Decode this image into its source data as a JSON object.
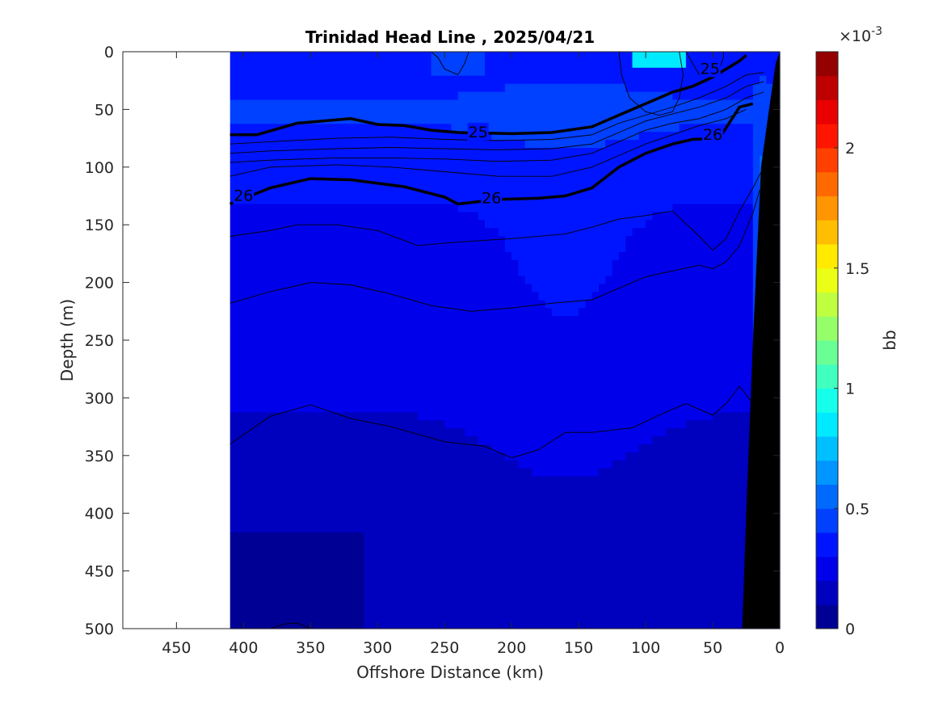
{
  "chart_data": {
    "type": "heatmap",
    "title": "Trinidad Head Line , 2025/04/21",
    "xlabel": "Offshore Distance (km)",
    "ylabel": "Depth (m)",
    "xlim": [
      490,
      0
    ],
    "ylim": [
      0,
      500
    ],
    "x_ticks": [
      450,
      400,
      350,
      300,
      250,
      200,
      150,
      100,
      50,
      0
    ],
    "y_ticks": [
      0,
      50,
      100,
      150,
      200,
      250,
      300,
      350,
      400,
      450,
      500
    ],
    "data_extent_km": [
      410,
      0
    ],
    "colorbar": {
      "label": "bb",
      "exponent_label": "×10",
      "exponent_power": "-3",
      "range": [
        0,
        0.0024
      ],
      "ticks": [
        "0",
        "0.5",
        "1",
        "1.5",
        "2"
      ],
      "tick_values": [
        0,
        0.5,
        1.0,
        1.5,
        2.0
      ],
      "levels": 24,
      "colormap": "jet"
    },
    "contour_labels": [
      {
        "text": "25",
        "x": 225,
        "y": 70
      },
      {
        "text": "25",
        "x": 52,
        "y": 15
      },
      {
        "text": "26",
        "x": 400,
        "y": 125
      },
      {
        "text": "26",
        "x": 215,
        "y": 127
      },
      {
        "text": "26",
        "x": 50,
        "y": 72
      }
    ],
    "density_contours": {
      "bold_25": [
        [
          410,
          72
        ],
        [
          390,
          72
        ],
        [
          360,
          62
        ],
        [
          320,
          58
        ],
        [
          300,
          63
        ],
        [
          280,
          64
        ],
        [
          260,
          68
        ],
        [
          240,
          70
        ],
        [
          200,
          71
        ],
        [
          170,
          70
        ],
        [
          140,
          65
        ],
        [
          120,
          55
        ],
        [
          100,
          45
        ],
        [
          80,
          35
        ],
        [
          65,
          30
        ],
        [
          50,
          22
        ],
        [
          30,
          8
        ],
        [
          25,
          3
        ]
      ],
      "bold_26": [
        [
          410,
          132
        ],
        [
          380,
          118
        ],
        [
          350,
          110
        ],
        [
          320,
          111
        ],
        [
          280,
          117
        ],
        [
          250,
          126
        ],
        [
          240,
          132
        ],
        [
          210,
          128
        ],
        [
          180,
          127
        ],
        [
          160,
          125
        ],
        [
          140,
          118
        ],
        [
          120,
          100
        ],
        [
          100,
          88
        ],
        [
          80,
          80
        ],
        [
          65,
          76
        ],
        [
          45,
          75
        ],
        [
          30,
          48
        ],
        [
          20,
          45
        ]
      ],
      "thin": [
        [
          [
            410,
            80
          ],
          [
            380,
            78
          ],
          [
            330,
            75
          ],
          [
            290,
            74
          ],
          [
            250,
            76
          ],
          [
            210,
            77
          ],
          [
            170,
            76
          ],
          [
            140,
            72
          ],
          [
            120,
            62
          ],
          [
            100,
            55
          ],
          [
            80,
            48
          ],
          [
            60,
            40
          ],
          [
            40,
            30
          ],
          [
            25,
            20
          ],
          [
            12,
            18
          ]
        ],
        [
          [
            410,
            88
          ],
          [
            380,
            86
          ],
          [
            330,
            84
          ],
          [
            290,
            83
          ],
          [
            250,
            84
          ],
          [
            210,
            85
          ],
          [
            170,
            84
          ],
          [
            140,
            80
          ],
          [
            120,
            70
          ],
          [
            100,
            60
          ],
          [
            80,
            54
          ],
          [
            60,
            48
          ],
          [
            40,
            40
          ],
          [
            25,
            30
          ],
          [
            12,
            26
          ]
        ],
        [
          [
            410,
            96
          ],
          [
            380,
            94
          ],
          [
            330,
            92
          ],
          [
            290,
            92
          ],
          [
            250,
            93
          ],
          [
            210,
            95
          ],
          [
            170,
            94
          ],
          [
            140,
            88
          ],
          [
            120,
            78
          ],
          [
            100,
            68
          ],
          [
            80,
            62
          ],
          [
            60,
            58
          ],
          [
            40,
            50
          ],
          [
            25,
            40
          ],
          [
            12,
            35
          ]
        ],
        [
          [
            410,
            108
          ],
          [
            380,
            100
          ],
          [
            330,
            98
          ],
          [
            290,
            100
          ],
          [
            250,
            104
          ],
          [
            210,
            108
          ],
          [
            170,
            108
          ],
          [
            140,
            100
          ],
          [
            120,
            90
          ],
          [
            100,
            80
          ],
          [
            80,
            72
          ],
          [
            60,
            64
          ],
          [
            40,
            58
          ],
          [
            25,
            50
          ]
        ],
        [
          [
            410,
            160
          ],
          [
            380,
            155
          ],
          [
            360,
            150
          ],
          [
            330,
            150
          ],
          [
            300,
            155
          ],
          [
            270,
            168
          ],
          [
            240,
            165
          ],
          [
            200,
            162
          ],
          [
            160,
            158
          ],
          [
            140,
            152
          ],
          [
            120,
            145
          ],
          [
            100,
            142
          ],
          [
            80,
            138
          ],
          [
            60,
            160
          ],
          [
            50,
            172
          ],
          [
            40,
            162
          ],
          [
            30,
            138
          ],
          [
            20,
            118
          ],
          [
            12,
            100
          ]
        ],
        [
          [
            410,
            218
          ],
          [
            380,
            208
          ],
          [
            350,
            200
          ],
          [
            320,
            202
          ],
          [
            290,
            210
          ],
          [
            260,
            220
          ],
          [
            230,
            225
          ],
          [
            200,
            222
          ],
          [
            170,
            218
          ],
          [
            140,
            215
          ],
          [
            120,
            205
          ],
          [
            100,
            195
          ],
          [
            80,
            190
          ],
          [
            60,
            185
          ],
          [
            50,
            188
          ],
          [
            40,
            182
          ],
          [
            30,
            168
          ],
          [
            20,
            140
          ],
          [
            15,
            120
          ]
        ],
        [
          [
            410,
            340
          ],
          [
            380,
            316
          ],
          [
            350,
            306
          ],
          [
            320,
            318
          ],
          [
            290,
            325
          ],
          [
            250,
            338
          ],
          [
            220,
            342
          ],
          [
            200,
            352
          ],
          [
            180,
            345
          ],
          [
            160,
            330
          ],
          [
            140,
            330
          ],
          [
            110,
            326
          ],
          [
            90,
            315
          ],
          [
            70,
            305
          ],
          [
            50,
            315
          ],
          [
            40,
            305
          ],
          [
            30,
            290
          ],
          [
            20,
            305
          ],
          [
            15,
            320
          ]
        ],
        [
          [
            380,
            500
          ],
          [
            370,
            496
          ],
          [
            360,
            495
          ],
          [
            350,
            500
          ]
        ]
      ],
      "surface_loops": [
        [
          [
            260,
            0
          ],
          [
            255,
            5
          ],
          [
            250,
            15
          ],
          [
            240,
            20
          ],
          [
            235,
            10
          ],
          [
            232,
            0
          ]
        ],
        [
          [
            120,
            0
          ],
          [
            118,
            20
          ],
          [
            112,
            40
          ],
          [
            100,
            52
          ],
          [
            90,
            55
          ],
          [
            80,
            52
          ],
          [
            75,
            40
          ],
          [
            72,
            20
          ],
          [
            75,
            0
          ]
        ],
        [
          [
            70,
            0
          ],
          [
            65,
            10
          ],
          [
            60,
            20
          ],
          [
            50,
            22
          ],
          [
            45,
            15
          ],
          [
            42,
            5
          ],
          [
            42,
            0
          ]
        ]
      ]
    },
    "bathymetry": {
      "color": "#000000",
      "surface": [
        [
          0,
          0
        ],
        [
          0,
          500
        ],
        [
          28,
          500
        ],
        [
          25,
          400
        ],
        [
          20,
          250
        ],
        [
          14,
          100
        ],
        [
          8,
          50
        ],
        [
          3,
          10
        ]
      ]
    }
  }
}
